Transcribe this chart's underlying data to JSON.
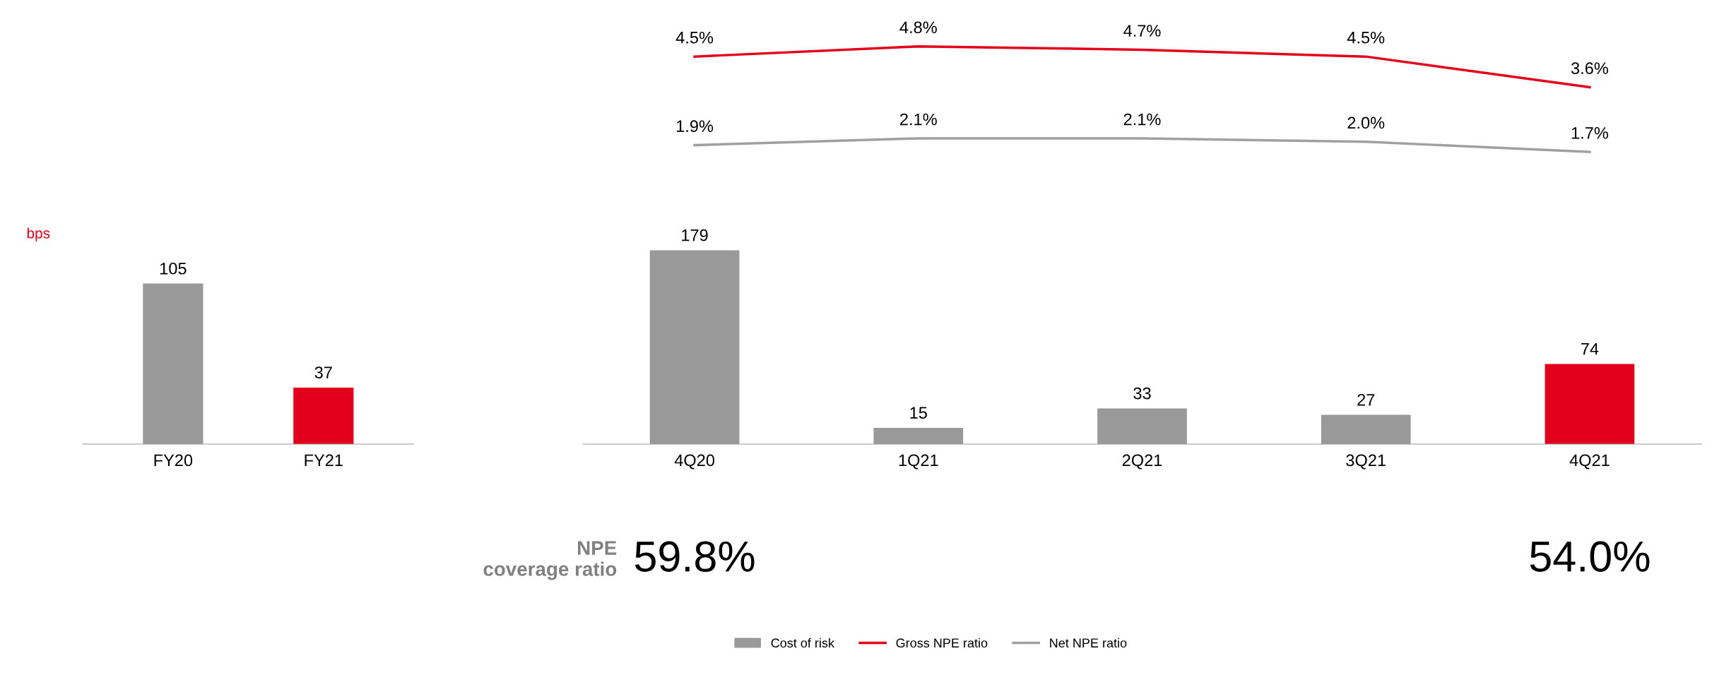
{
  "chart_data": [
    {
      "type": "bar",
      "ylabel": "bps",
      "categories": [
        "FY20",
        "FY21"
      ],
      "values": [
        105,
        37
      ],
      "colors": [
        "#999999",
        "#e2001a"
      ],
      "data_labels": true,
      "tick_labels": "x",
      "grid": false
    },
    {
      "type": "line",
      "categories": [
        null,
        null,
        null,
        null,
        null
      ],
      "tick_labels": false,
      "grid": false,
      "legend": "bottom",
      "series": [
        {
          "name": "Gross NPE ratio",
          "color": "#e2001a",
          "values": [
            4.5,
            4.8,
            4.7,
            4.5,
            3.6
          ],
          "value_labels": [
            "4.5%",
            "4.8%",
            "4.7%",
            "4.5%",
            "3.6%"
          ]
        },
        {
          "name": "Net NPE ratio",
          "color": "#a0a0a0",
          "values": [
            1.9,
            2.1,
            2.1,
            2.0,
            1.7
          ],
          "value_labels": [
            "1.9%",
            "2.1%",
            "2.1%",
            "2.0%",
            "1.7%"
          ]
        }
      ]
    },
    {
      "type": "bar",
      "categories": [
        "4Q20",
        "1Q21",
        "2Q21",
        "3Q21",
        "4Q21"
      ],
      "data_labels": true,
      "tick_labels": "x",
      "grid": false,
      "legend": "bottom",
      "series": [
        {
          "name": "Cost of risk",
          "color": "#999999",
          "colors": [
            "#999999",
            "#999999",
            "#999999",
            "#999999",
            "#e2001a"
          ],
          "values": [
            179,
            15,
            33,
            27,
            74
          ]
        }
      ],
      "annotations": [
        "NPE\ncoverage ratio",
        "59.8%",
        "54.0%"
      ]
    }
  ]
}
